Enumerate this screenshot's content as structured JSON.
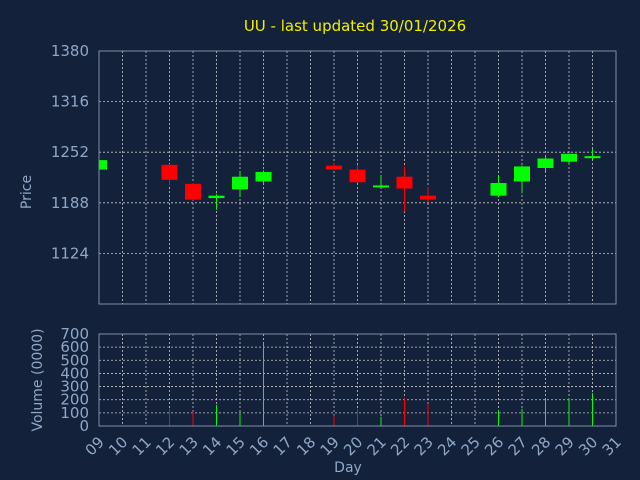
{
  "chart_data": {
    "type": "candlestick",
    "title": "UU - last updated 30/01/2026",
    "colors": {
      "up": "#00ff00",
      "down": "#ff0000",
      "background": "#13213a",
      "text": "#8fa8c8",
      "title": "#f0f000"
    },
    "price_panel": {
      "ylabel": "Price",
      "ylim": [
        1060,
        1380
      ],
      "yticks": [
        1124,
        1188,
        1252,
        1316,
        1380
      ],
      "grid": true
    },
    "volume_panel": {
      "ylabel": "Volume (0000)",
      "ylim": [
        0,
        700
      ],
      "yticks": [
        0,
        100,
        200,
        300,
        400,
        500,
        600,
        700
      ],
      "grid": true
    },
    "xlabel": "Day",
    "x_ticks": [
      "09",
      "10",
      "11",
      "12",
      "13",
      "14",
      "15",
      "16",
      "17",
      "18",
      "19",
      "20",
      "21",
      "22",
      "23",
      "24",
      "25",
      "26",
      "27",
      "28",
      "29",
      "30",
      "31"
    ],
    "candles": [
      {
        "day": 9,
        "open": 1230,
        "high": 1243,
        "low": 1229,
        "close": 1242,
        "volume": 0
      },
      {
        "day": 12,
        "open": 1236,
        "high": 1237,
        "low": 1210,
        "close": 1217,
        "volume": 130
      },
      {
        "day": 13,
        "open": 1212,
        "high": 1213,
        "low": 1191,
        "close": 1192,
        "volume": 110
      },
      {
        "day": 14,
        "open": 1194,
        "high": 1199,
        "low": 1179,
        "close": 1197,
        "volume": 160
      },
      {
        "day": 15,
        "open": 1205,
        "high": 1227,
        "low": 1196,
        "close": 1221,
        "volume": 100
      },
      {
        "day": 16,
        "open": 1215,
        "high": 1229,
        "low": 1212,
        "close": 1227,
        "volume": 640
      },
      {
        "day": 19,
        "open": 1235,
        "high": 1239,
        "low": 1230,
        "close": 1230,
        "volume": 80
      },
      {
        "day": 20,
        "open": 1230,
        "high": 1235,
        "low": 1213,
        "close": 1214,
        "volume": 130
      },
      {
        "day": 21,
        "open": 1209,
        "high": 1223,
        "low": 1209,
        "close": 1210,
        "volume": 70
      },
      {
        "day": 22,
        "open": 1221,
        "high": 1234,
        "low": 1177,
        "close": 1206,
        "volume": 210
      },
      {
        "day": 23,
        "open": 1197,
        "high": 1208,
        "low": 1188,
        "close": 1192,
        "volume": 170
      },
      {
        "day": 26,
        "open": 1197,
        "high": 1222,
        "low": 1195,
        "close": 1213,
        "volume": 120
      },
      {
        "day": 27,
        "open": 1215,
        "high": 1235,
        "low": 1200,
        "close": 1234,
        "volume": 130
      },
      {
        "day": 28,
        "open": 1232,
        "high": 1246,
        "low": 1228,
        "close": 1244,
        "volume": 200
      },
      {
        "day": 29,
        "open": 1240,
        "high": 1250,
        "low": 1236,
        "close": 1250,
        "volume": 210
      },
      {
        "day": 30,
        "open": 1246,
        "high": 1256,
        "low": 1243,
        "close": 1247,
        "volume": 250
      }
    ]
  }
}
